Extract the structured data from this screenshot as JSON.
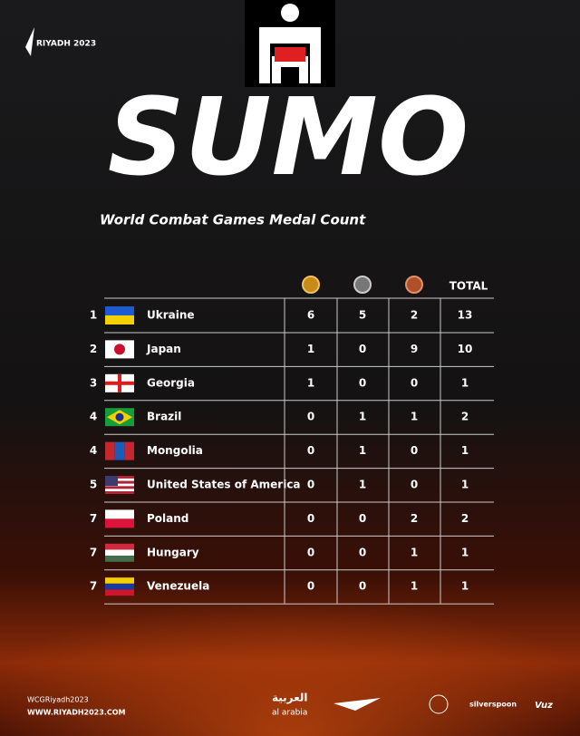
{
  "logo": "RIYADH 2023",
  "title": "SUMO",
  "subtitle": "World Combat Games Medal Count",
  "table": {
    "header": {
      "total": "TOTAL"
    },
    "rows": [
      [
        1,
        "Ukraine",
        6,
        5,
        2,
        13
      ],
      [
        2,
        "Japan",
        1,
        0,
        9,
        10
      ],
      [
        3,
        "Georgia",
        1,
        0,
        0,
        1
      ],
      [
        4,
        "Brazil",
        0,
        1,
        1,
        2
      ],
      [
        4,
        "Mongolia",
        0,
        1,
        0,
        1
      ],
      [
        5,
        "United States of America",
        0,
        1,
        0,
        1
      ],
      [
        7,
        "Poland",
        0,
        0,
        2,
        2
      ],
      [
        7,
        "Hungary",
        0,
        0,
        1,
        1
      ],
      [
        7,
        "Venezuela",
        0,
        0,
        1,
        1
      ]
    ]
  },
  "footer": {
    "handle": "WCGRiyadh2023",
    "url": "WWW.RIYADH2023.COM",
    "sponsors": [
      "العربية",
      "al arabia",
      "silverspoon",
      "Vuz"
    ]
  }
}
